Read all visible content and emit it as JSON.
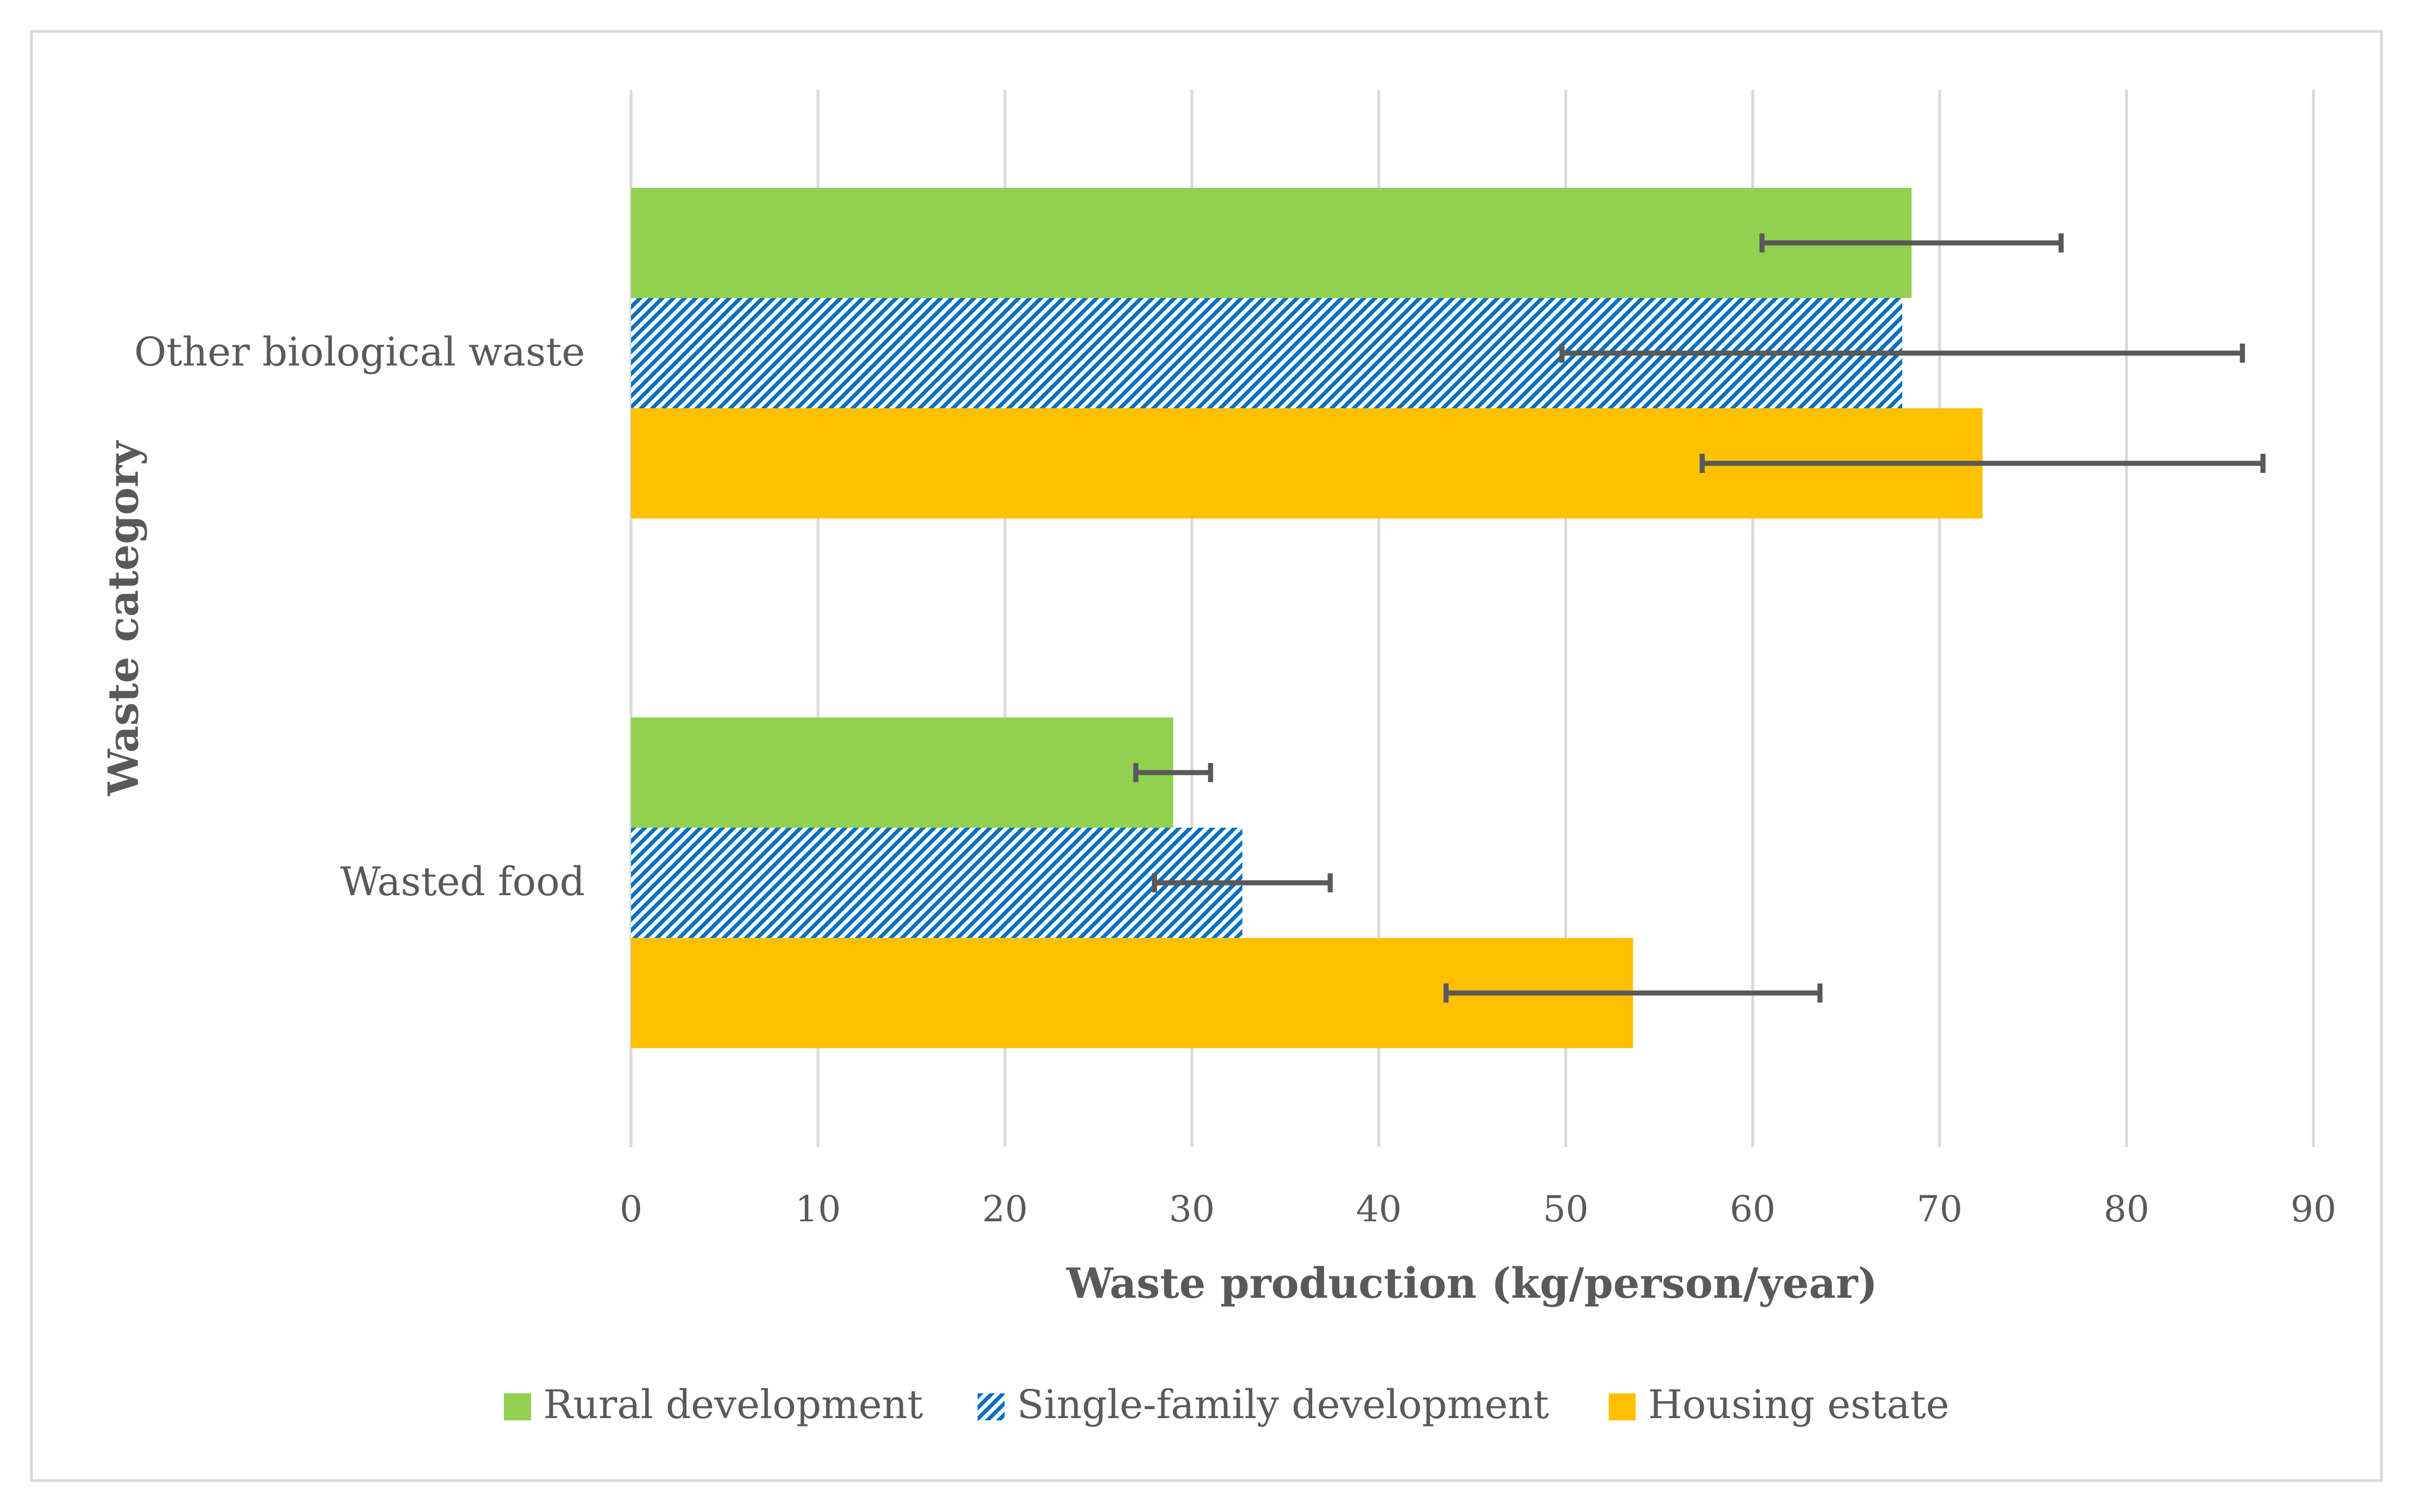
{
  "chart_data": {
    "type": "bar",
    "orientation": "horizontal",
    "title": "",
    "xlabel": "Waste production (kg/person/year)",
    "ylabel": "Waste category",
    "xlim": [
      0,
      90
    ],
    "x_ticks": [
      "0",
      "10",
      "20",
      "30",
      "40",
      "50",
      "60",
      "70",
      "80",
      "90"
    ],
    "grid": true,
    "legend_position": "bottom",
    "categories": [
      "Other biological waste",
      "Wasted food"
    ],
    "series": [
      {
        "name": "Rural development",
        "color": "#92d050",
        "pattern": "solid",
        "values": [
          68.5,
          29.0
        ],
        "error_low": [
          60.5,
          27.0
        ],
        "error_high": [
          76.5,
          31.0
        ]
      },
      {
        "name": "Single-family development",
        "color": "#0070c0",
        "pattern": "diagonal-stripes",
        "values": [
          68.0,
          32.7
        ],
        "error_low": [
          49.8,
          28.0
        ],
        "error_high": [
          86.2,
          37.4
        ]
      },
      {
        "name": "Housing estate",
        "color": "#ffc000",
        "pattern": "solid",
        "values": [
          72.3,
          53.6
        ],
        "error_low": [
          57.3,
          43.6
        ],
        "error_high": [
          87.3,
          63.6
        ]
      }
    ],
    "error_bar_color": "#595959",
    "grid_color": "#d9d9d9",
    "frame_color": "#d9d9d9"
  }
}
